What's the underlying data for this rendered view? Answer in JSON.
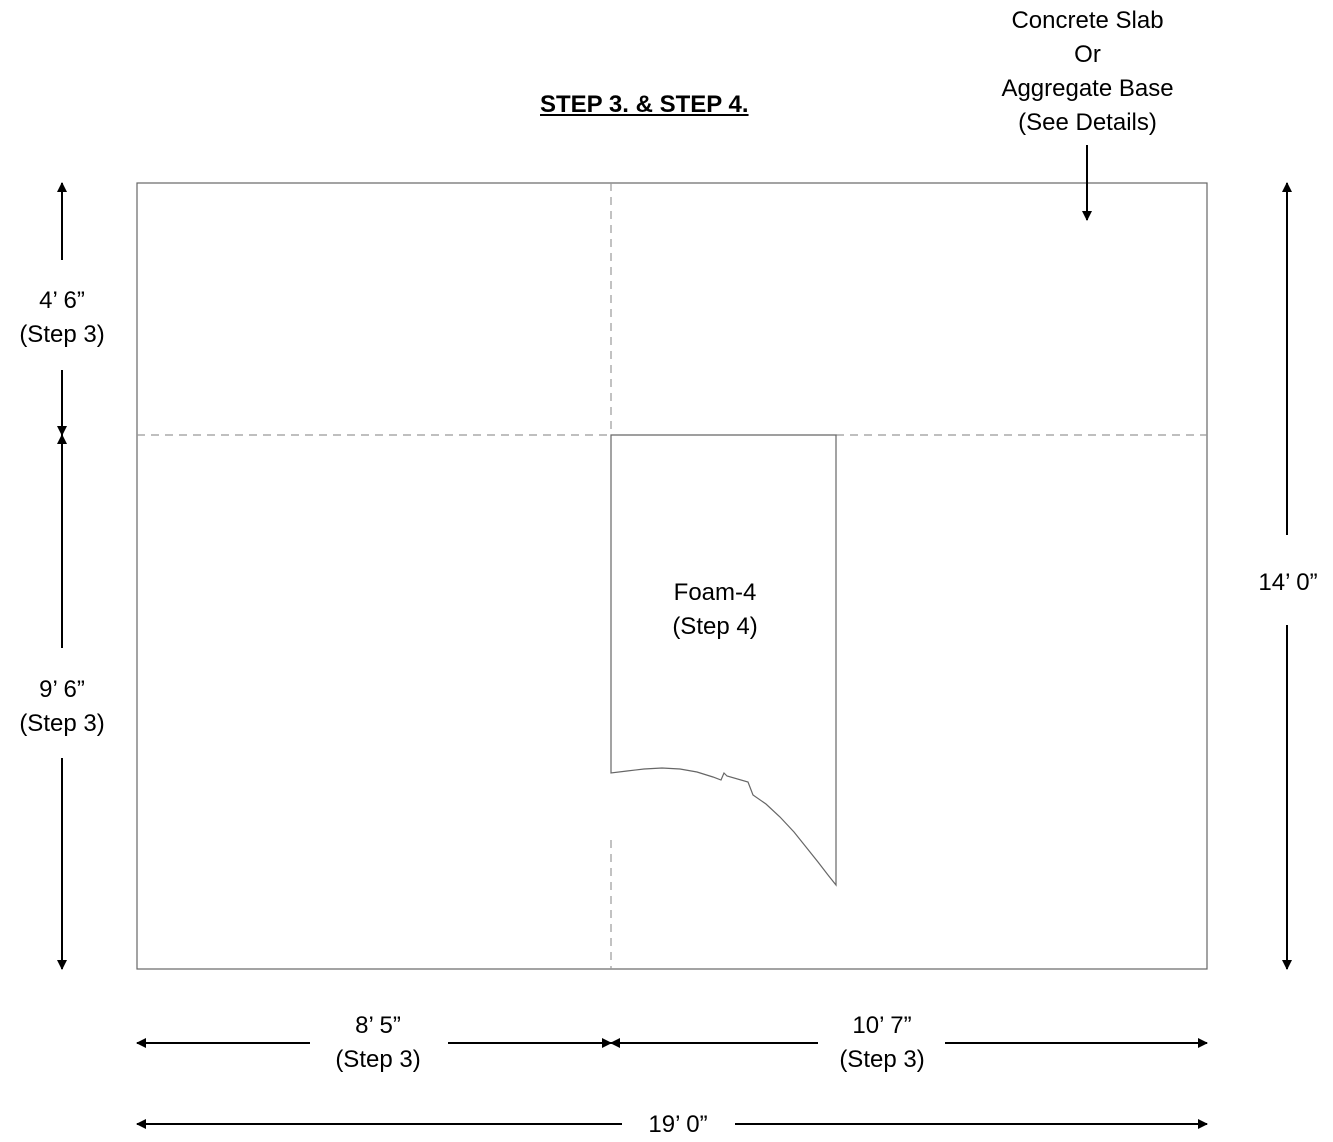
{
  "title": "STEP 3. & STEP 4.",
  "callout": {
    "line1": "Concrete Slab",
    "line2": "Or",
    "line3": "Aggregate Base",
    "line4": "(See Details)"
  },
  "region_label": {
    "line1": "Foam-4",
    "line2": "(Step 4)"
  },
  "dimensions": {
    "left_upper": {
      "value": "4’ 6”",
      "step": "(Step 3)"
    },
    "left_lower": {
      "value": "9’ 6”",
      "step": "(Step 3)"
    },
    "right_total": {
      "value": "14’ 0”"
    },
    "bottom_left": {
      "value": "8’ 5”",
      "step": "(Step 3)"
    },
    "bottom_right": {
      "value": "10’ 7”",
      "step": "(Step 3)"
    },
    "bottom_total": {
      "value": "19’ 0”"
    }
  },
  "colors": {
    "outline": "#666666",
    "dashed": "#999999",
    "arrow": "#000000"
  }
}
